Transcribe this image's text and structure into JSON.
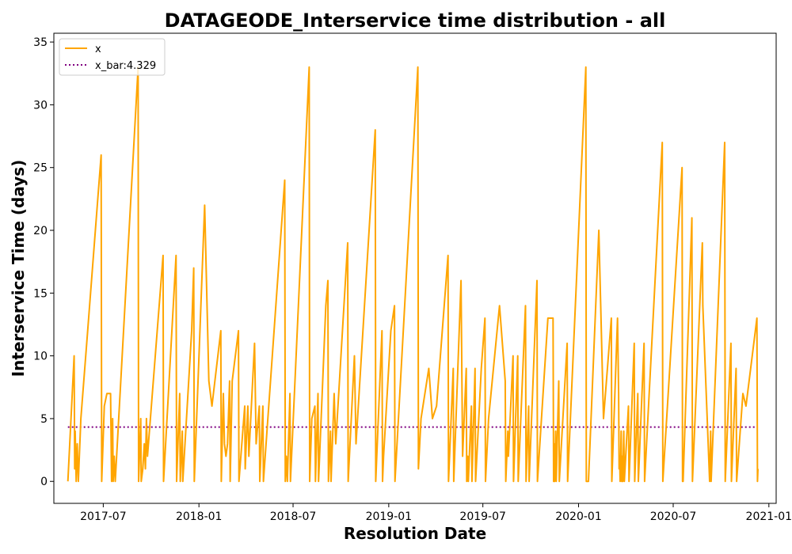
{
  "chart_data": {
    "type": "line",
    "title": "DATAGEODE_Interservice time distribution - all",
    "xlabel": "Resolution Date",
    "ylabel": "Interservice Time (days)",
    "xlim": [
      "2017-03-28",
      "2021-01-15"
    ],
    "ylim": [
      -1.75,
      35.7
    ],
    "yticks": [
      0,
      5,
      10,
      15,
      20,
      25,
      30,
      35
    ],
    "xticks": [
      {
        "date": "2017-07-01",
        "label": "2017-07"
      },
      {
        "date": "2018-01-01",
        "label": "2018-01"
      },
      {
        "date": "2018-07-01",
        "label": "2018-07"
      },
      {
        "date": "2019-01-01",
        "label": "2019-01"
      },
      {
        "date": "2019-07-01",
        "label": "2019-07"
      },
      {
        "date": "2020-01-01",
        "label": "2020-01"
      },
      {
        "date": "2020-07-01",
        "label": "2020-07"
      },
      {
        "date": "2021-01-01",
        "label": "2021-01"
      }
    ],
    "legend_position": "upper-left",
    "grid": false,
    "series": [
      {
        "name": "x",
        "color": "#FFA500",
        "style": "solid",
        "points": [
          [
            "2017-04-24",
            0
          ],
          [
            "2017-05-06",
            10
          ],
          [
            "2017-05-07",
            1
          ],
          [
            "2017-05-08",
            4
          ],
          [
            "2017-05-10",
            0
          ],
          [
            "2017-05-12",
            3
          ],
          [
            "2017-05-14",
            0
          ],
          [
            "2017-05-19",
            5
          ],
          [
            "2017-06-01",
            12
          ],
          [
            "2017-06-27",
            26
          ],
          [
            "2017-06-28",
            0
          ],
          [
            "2017-07-03",
            6
          ],
          [
            "2017-07-08",
            7
          ],
          [
            "2017-07-15",
            7
          ],
          [
            "2017-07-17",
            0
          ],
          [
            "2017-07-19",
            5
          ],
          [
            "2017-07-20",
            0
          ],
          [
            "2017-07-22",
            2
          ],
          [
            "2017-07-24",
            0
          ],
          [
            "2017-09-06",
            33
          ],
          [
            "2017-09-07",
            0
          ],
          [
            "2017-09-11",
            5
          ],
          [
            "2017-09-12",
            0
          ],
          [
            "2017-09-15",
            1
          ],
          [
            "2017-09-18",
            3
          ],
          [
            "2017-09-20",
            1
          ],
          [
            "2017-09-22",
            5
          ],
          [
            "2017-09-24",
            2
          ],
          [
            "2017-10-24",
            18
          ],
          [
            "2017-10-25",
            0
          ],
          [
            "2017-11-18",
            18
          ],
          [
            "2017-11-19",
            0
          ],
          [
            "2017-11-25",
            7
          ],
          [
            "2017-11-26",
            0
          ],
          [
            "2017-11-30",
            4
          ],
          [
            "2017-12-01",
            0
          ],
          [
            "2017-12-18",
            12
          ],
          [
            "2017-12-22",
            17
          ],
          [
            "2017-12-23",
            0
          ],
          [
            "2018-01-12",
            22
          ],
          [
            "2018-01-20",
            8
          ],
          [
            "2018-01-26",
            6
          ],
          [
            "2018-02-12",
            12
          ],
          [
            "2018-02-13",
            0
          ],
          [
            "2018-02-17",
            7
          ],
          [
            "2018-02-19",
            3
          ],
          [
            "2018-02-22",
            2
          ],
          [
            "2018-02-25",
            3
          ],
          [
            "2018-03-01",
            8
          ],
          [
            "2018-03-02",
            0
          ],
          [
            "2018-03-06",
            8
          ],
          [
            "2018-03-18",
            12
          ],
          [
            "2018-03-19",
            0
          ],
          [
            "2018-03-30",
            6
          ],
          [
            "2018-03-31",
            1
          ],
          [
            "2018-04-05",
            6
          ],
          [
            "2018-04-07",
            2
          ],
          [
            "2018-04-18",
            11
          ],
          [
            "2018-04-21",
            3
          ],
          [
            "2018-04-27",
            6
          ],
          [
            "2018-04-28",
            0
          ],
          [
            "2018-05-04",
            6
          ],
          [
            "2018-05-05",
            0
          ],
          [
            "2018-06-15",
            24
          ],
          [
            "2018-06-16",
            0
          ],
          [
            "2018-06-18",
            2
          ],
          [
            "2018-06-20",
            0
          ],
          [
            "2018-06-25",
            7
          ],
          [
            "2018-06-26",
            0
          ],
          [
            "2018-08-01",
            33
          ],
          [
            "2018-08-02",
            0
          ],
          [
            "2018-08-06",
            5
          ],
          [
            "2018-08-12",
            6
          ],
          [
            "2018-08-13",
            0
          ],
          [
            "2018-08-18",
            7
          ],
          [
            "2018-08-19",
            0
          ],
          [
            "2018-09-02",
            14
          ],
          [
            "2018-09-06",
            16
          ],
          [
            "2018-09-07",
            0
          ],
          [
            "2018-09-11",
            4
          ],
          [
            "2018-09-12",
            0
          ],
          [
            "2018-09-18",
            7
          ],
          [
            "2018-09-21",
            3
          ],
          [
            "2018-10-14",
            19
          ],
          [
            "2018-10-15",
            0
          ],
          [
            "2018-10-27",
            10
          ],
          [
            "2018-10-30",
            3
          ],
          [
            "2018-12-06",
            28
          ],
          [
            "2018-12-07",
            0
          ],
          [
            "2018-12-19",
            12
          ],
          [
            "2018-12-20",
            0
          ],
          [
            "2018-12-22",
            2
          ],
          [
            "2019-01-05",
            12
          ],
          [
            "2019-01-12",
            14
          ],
          [
            "2019-01-13",
            0
          ],
          [
            "2019-02-26",
            33
          ],
          [
            "2019-02-27",
            1
          ],
          [
            "2019-03-04",
            5
          ],
          [
            "2019-03-19",
            9
          ],
          [
            "2019-03-26",
            5
          ],
          [
            "2019-04-03",
            6
          ],
          [
            "2019-04-25",
            18
          ],
          [
            "2019-04-26",
            0
          ],
          [
            "2019-05-05",
            9
          ],
          [
            "2019-05-06",
            0
          ],
          [
            "2019-05-20",
            16
          ],
          [
            "2019-05-23",
            2
          ],
          [
            "2019-05-30",
            9
          ],
          [
            "2019-05-31",
            0
          ],
          [
            "2019-06-02",
            2
          ],
          [
            "2019-06-03",
            0
          ],
          [
            "2019-06-09",
            6
          ],
          [
            "2019-06-10",
            0
          ],
          [
            "2019-06-16",
            9
          ],
          [
            "2019-06-17",
            0
          ],
          [
            "2019-06-28",
            9
          ],
          [
            "2019-07-05",
            13
          ],
          [
            "2019-07-06",
            0
          ],
          [
            "2019-07-12",
            5
          ],
          [
            "2019-08-02",
            14
          ],
          [
            "2019-08-13",
            8
          ],
          [
            "2019-08-14",
            0
          ],
          [
            "2019-08-18",
            4
          ],
          [
            "2019-08-19",
            2
          ],
          [
            "2019-08-28",
            10
          ],
          [
            "2019-08-29",
            0
          ],
          [
            "2019-09-06",
            10
          ],
          [
            "2019-09-07",
            0
          ],
          [
            "2019-09-21",
            14
          ],
          [
            "2019-09-22",
            0
          ],
          [
            "2019-09-27",
            6
          ],
          [
            "2019-09-28",
            0
          ],
          [
            "2019-10-13",
            16
          ],
          [
            "2019-10-14",
            0
          ],
          [
            "2019-11-03",
            13
          ],
          [
            "2019-11-13",
            13
          ],
          [
            "2019-11-14",
            0
          ],
          [
            "2019-11-15",
            3
          ],
          [
            "2019-11-16",
            0
          ],
          [
            "2019-11-18",
            4
          ],
          [
            "2019-11-19",
            0
          ],
          [
            "2019-11-24",
            8
          ],
          [
            "2019-11-25",
            0
          ],
          [
            "2019-12-10",
            11
          ],
          [
            "2019-12-11",
            0
          ],
          [
            "2020-01-15",
            33
          ],
          [
            "2020-01-16",
            0
          ],
          [
            "2020-01-20",
            0
          ],
          [
            "2020-02-09",
            20
          ],
          [
            "2020-02-18",
            5
          ],
          [
            "2020-03-04",
            13
          ],
          [
            "2020-03-05",
            0
          ],
          [
            "2020-03-16",
            13
          ],
          [
            "2020-03-18",
            7
          ],
          [
            "2020-03-19",
            1
          ],
          [
            "2020-03-20",
            2
          ],
          [
            "2020-03-21",
            0
          ],
          [
            "2020-03-23",
            4
          ],
          [
            "2020-03-24",
            0
          ],
          [
            "2020-03-25",
            2
          ],
          [
            "2020-03-26",
            0
          ],
          [
            "2020-03-28",
            4
          ],
          [
            "2020-03-29",
            0
          ],
          [
            "2020-04-06",
            6
          ],
          [
            "2020-04-07",
            0
          ],
          [
            "2020-04-17",
            11
          ],
          [
            "2020-04-18",
            0
          ],
          [
            "2020-04-24",
            7
          ],
          [
            "2020-04-25",
            0
          ],
          [
            "2020-05-06",
            11
          ],
          [
            "2020-05-07",
            0
          ],
          [
            "2020-06-10",
            27
          ],
          [
            "2020-06-11",
            0
          ],
          [
            "2020-07-18",
            25
          ],
          [
            "2020-07-19",
            0
          ],
          [
            "2020-07-20",
            0
          ],
          [
            "2020-08-06",
            21
          ],
          [
            "2020-08-07",
            0
          ],
          [
            "2020-08-26",
            19
          ],
          [
            "2020-08-27",
            14
          ],
          [
            "2020-09-09",
            0
          ],
          [
            "2020-09-11",
            4
          ],
          [
            "2020-09-12",
            0
          ],
          [
            "2020-10-08",
            27
          ],
          [
            "2020-10-09",
            0
          ],
          [
            "2020-10-20",
            11
          ],
          [
            "2020-10-21",
            0
          ],
          [
            "2020-10-30",
            9
          ],
          [
            "2020-10-31",
            0
          ],
          [
            "2020-11-12",
            7
          ],
          [
            "2020-11-18",
            6
          ],
          [
            "2020-12-09",
            13
          ],
          [
            "2020-12-10",
            0
          ],
          [
            "2020-12-11",
            1
          ]
        ]
      },
      {
        "name": "x_bar:4.329",
        "color": "#800080",
        "style": "dotted",
        "value": 4.329,
        "x_range": [
          "2017-04-24",
          "2020-12-11"
        ]
      }
    ]
  }
}
